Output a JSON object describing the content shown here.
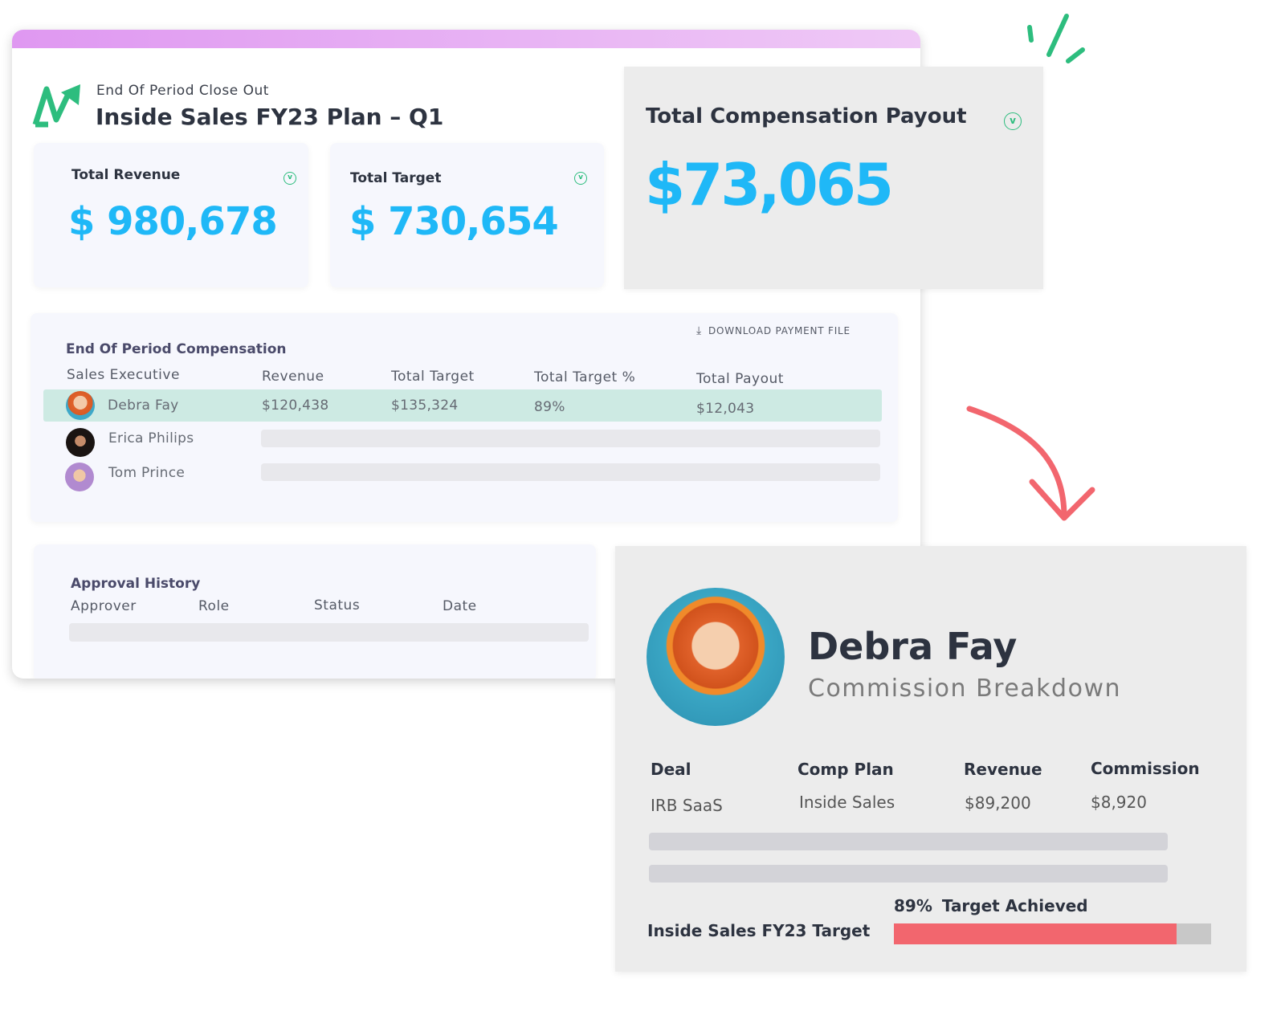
{
  "header": {
    "subtitle": "End Of Period Close Out",
    "title": "Inside Sales FY23 Plan – Q1",
    "logo_icon": "trend-arrow-logo"
  },
  "kpis": [
    {
      "label": "Total Revenue",
      "value": "$ 980,678"
    },
    {
      "label": "Total Target",
      "value": "$ 730,654"
    },
    {
      "label": "Total Compensation Payout",
      "value": "$73,065"
    }
  ],
  "compensation": {
    "title": "End Of Period Compensation",
    "download_label": "DOWNLOAD PAYMENT FILE",
    "columns": [
      "Sales Executive",
      "Revenue",
      "Total Target",
      "Total Target %",
      "Total Payout"
    ],
    "rows": [
      {
        "name": "Debra Fay",
        "revenue": "$120,438",
        "target": "$135,324",
        "pct": "89%",
        "payout": "$12,043"
      },
      {
        "name": "Erica Philips"
      },
      {
        "name": "Tom Prince"
      }
    ]
  },
  "approval": {
    "title": "Approval History",
    "columns": [
      "Approver",
      "Role",
      "Status",
      "Date"
    ]
  },
  "detail": {
    "name": "Debra Fay",
    "subtitle": "Commission Breakdown",
    "columns": [
      "Deal",
      "Comp Plan",
      "Revenue",
      "Commission"
    ],
    "row": [
      "IRB SaaS",
      "Inside Sales",
      "$89,200",
      "$8,920"
    ],
    "target_label": "Inside Sales FY23 Target",
    "progress_pct_label": "89%",
    "progress_text": "Target Achieved",
    "progress": 89
  },
  "colors": {
    "accent": "#1fb8f7",
    "brand_green": "#2dbd7e",
    "progress": "#f2666e",
    "highlight_row": "#cdeae3"
  }
}
